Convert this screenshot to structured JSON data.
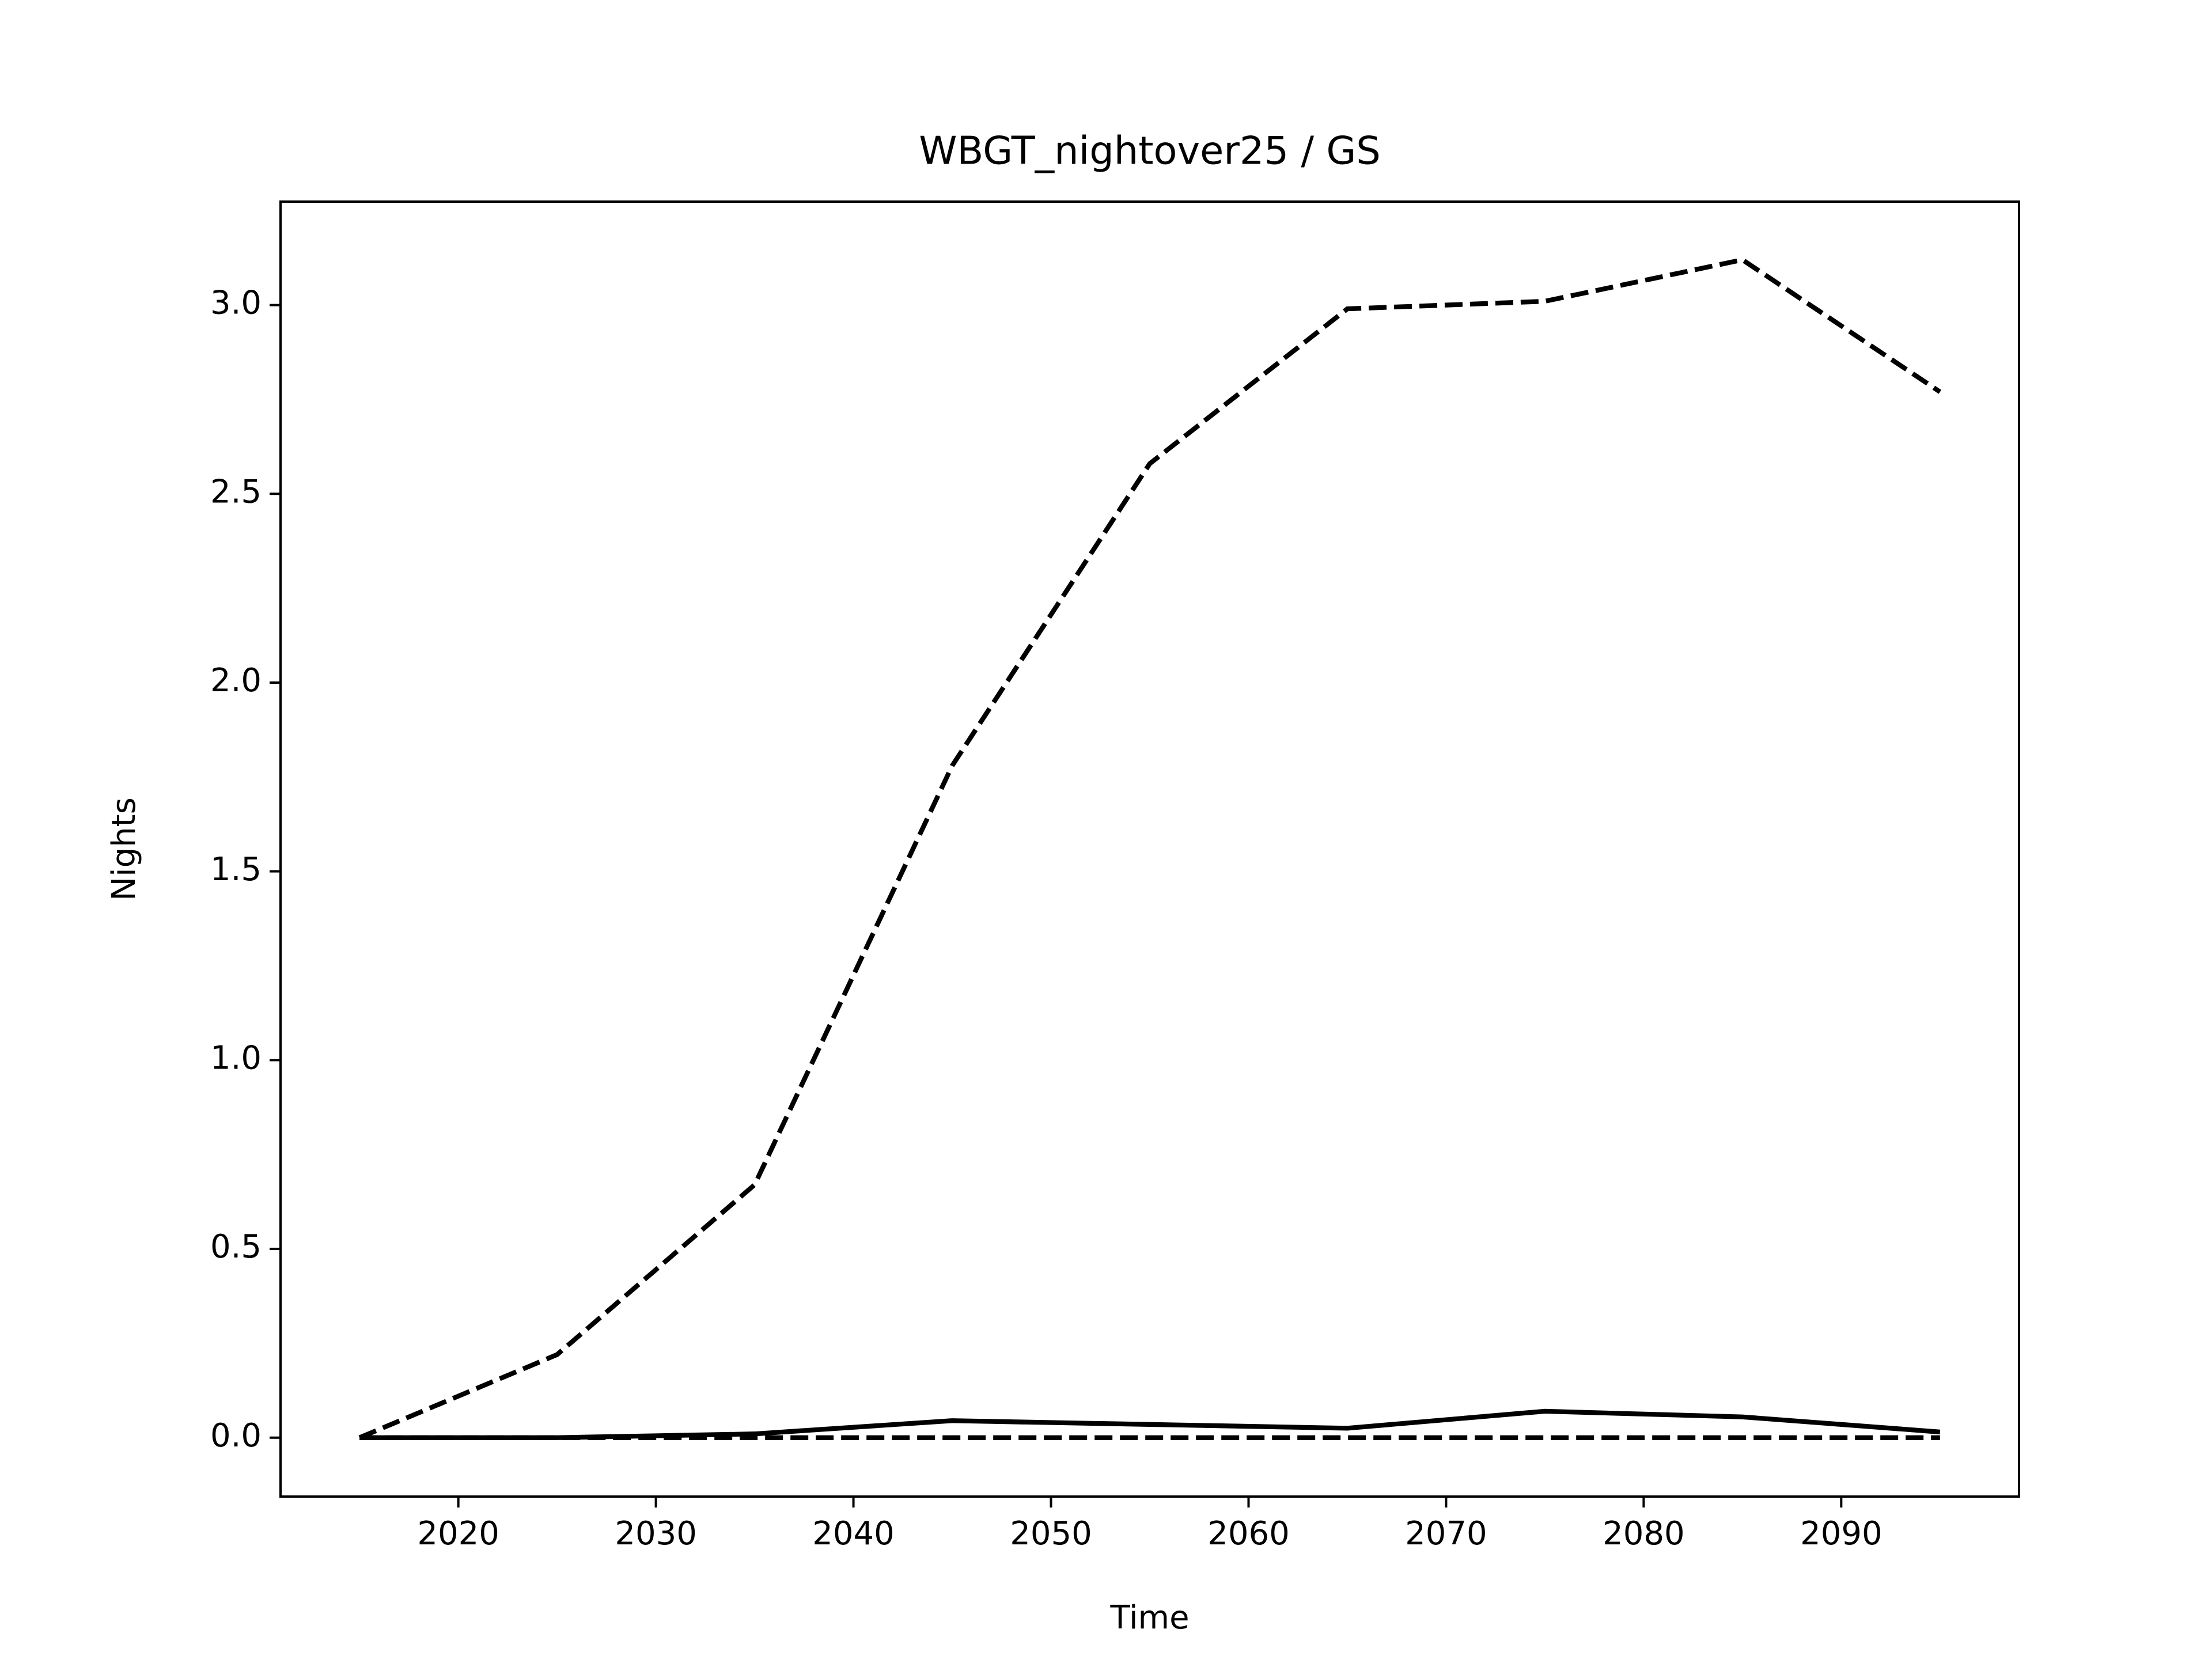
{
  "chart_data": {
    "type": "line",
    "title": "WBGT_nightover25 / GS",
    "x_label": "Time",
    "y_label": "Nights",
    "x": [
      2015,
      2025,
      2035,
      2045,
      2055,
      2065,
      2075,
      2085,
      2095
    ],
    "series": [
      {
        "color": "#000000",
        "linestyle": "dashed",
        "values": [
          0,
          0.22,
          0.67,
          1.78,
          2.58,
          2.99,
          3.01,
          3.12,
          2.77
        ]
      },
      {
        "color": "#000000",
        "linestyle": "solid",
        "values": [
          0,
          0,
          0.01,
          0.045,
          0.035,
          0.025,
          0.07,
          0.055,
          0.015
        ]
      },
      {
        "color": "#000000",
        "linestyle": "dashed",
        "values": [
          0,
          0,
          0,
          0,
          0,
          0,
          0,
          0,
          0
        ]
      }
    ],
    "xlim": [
      2011,
      2099
    ],
    "ylim": [
      -0.156,
      3.274
    ],
    "xticks": [
      2020,
      2030,
      2040,
      2050,
      2060,
      2070,
      2080,
      2090
    ],
    "yticks": [
      {
        "value": 0,
        "label": "0.0"
      },
      0.5,
      {
        "value": 1,
        "label": "1.0"
      },
      1.5,
      {
        "value": 2,
        "label": "2.0"
      },
      2.5,
      {
        "value": 3,
        "label": "3.0"
      }
    ],
    "grid": false
  }
}
